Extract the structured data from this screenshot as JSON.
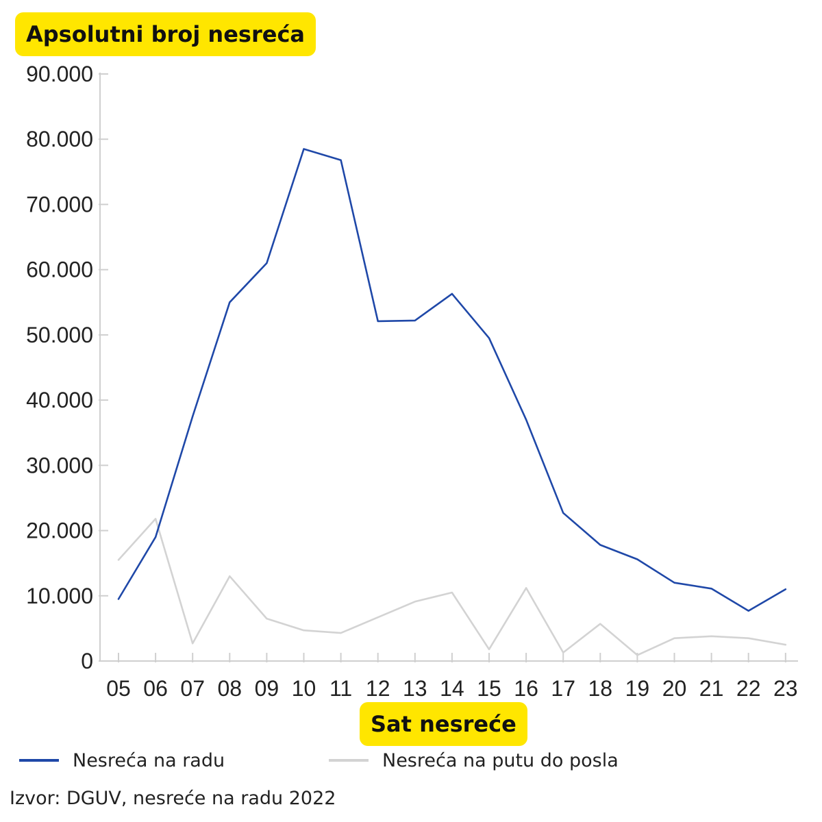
{
  "chart_data": {
    "type": "line",
    "title": "Apsolutni broj nesreća",
    "xlabel": "Sat nesreće",
    "ylabel": "",
    "categories": [
      "05",
      "06",
      "07",
      "08",
      "09",
      "10",
      "11",
      "12",
      "13",
      "14",
      "15",
      "16",
      "17",
      "18",
      "19",
      "20",
      "21",
      "22",
      "23"
    ],
    "ylim": [
      0,
      90000
    ],
    "yticks": [
      0,
      10000,
      20000,
      30000,
      40000,
      50000,
      60000,
      70000,
      80000,
      90000
    ],
    "ytick_labels": [
      "0",
      "10.000",
      "20.000",
      "30.000",
      "40.000",
      "50.000",
      "60.000",
      "70.000",
      "80.000",
      "90.000"
    ],
    "series": [
      {
        "name": "Nesreća na radu",
        "color": "#1f48a8",
        "values": [
          9500,
          19000,
          37500,
          55000,
          61000,
          78500,
          76800,
          52100,
          52200,
          56300,
          49500,
          37000,
          22700,
          17800,
          15600,
          12000,
          11100,
          7700,
          11000
        ]
      },
      {
        "name": "Nesreća na putu do posla",
        "color": "#d3d3d3",
        "values": [
          15500,
          21800,
          2700,
          13000,
          6500,
          4700,
          4300,
          6700,
          9100,
          10500,
          1800,
          11200,
          1300,
          5700,
          900,
          3500,
          3800,
          3500,
          2500
        ]
      }
    ],
    "grid": false,
    "legend_position": "bottom"
  },
  "source_text": "Izvor: DGUV, nesreće na radu 2022"
}
